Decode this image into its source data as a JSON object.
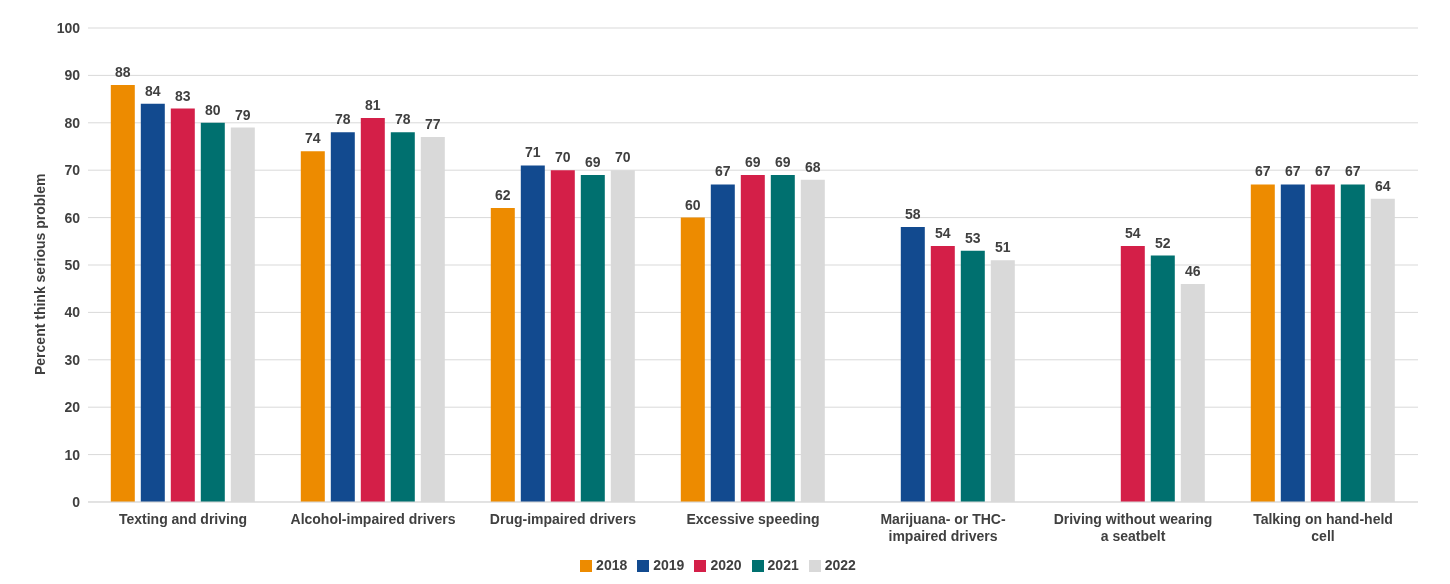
{
  "chart_data": {
    "type": "bar",
    "ylabel": "Percent think serious problem",
    "categories": [
      "Texting and driving",
      "Alcohol-impaired drivers",
      "Drug-impaired drivers",
      "Excessive speeding",
      "Marijuana- or THC-impaired drivers",
      "Driving without wearing a seatbelt",
      "Talking on hand-held cell"
    ],
    "series": [
      {
        "name": "2018",
        "color": "#ed8b00",
        "values": [
          88,
          74,
          62,
          60,
          null,
          null,
          67
        ]
      },
      {
        "name": "2019",
        "color": "#124a8f",
        "values": [
          84,
          78,
          71,
          67,
          58,
          null,
          67
        ]
      },
      {
        "name": "2020",
        "color": "#d41f48",
        "values": [
          83,
          81,
          70,
          69,
          54,
          54,
          67
        ]
      },
      {
        "name": "2021",
        "color": "#00706f",
        "values": [
          80,
          78,
          69,
          69,
          53,
          52,
          67
        ]
      },
      {
        "name": "2022",
        "color": "#d9d9d9",
        "values": [
          79,
          77,
          70,
          68,
          51,
          46,
          64
        ]
      }
    ],
    "ylim": [
      0,
      100
    ],
    "yticks": [
      0,
      10,
      20,
      30,
      40,
      50,
      60,
      70,
      80,
      90,
      100
    ],
    "grid": "y",
    "legend": "bottom",
    "data_labels": true
  }
}
